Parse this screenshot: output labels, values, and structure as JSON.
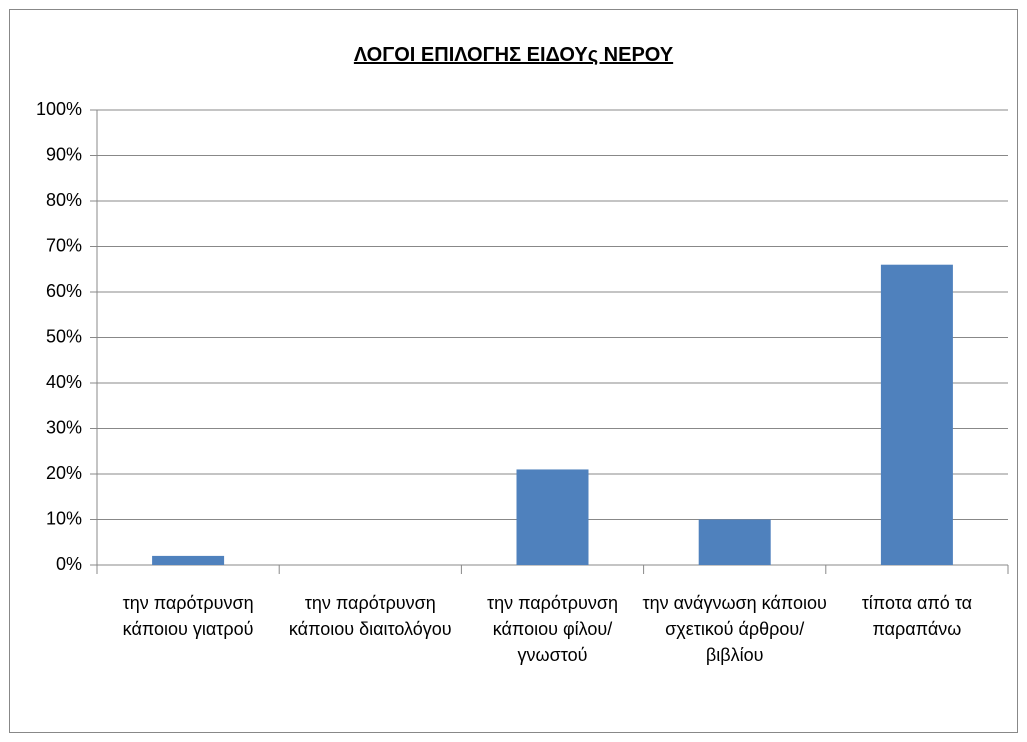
{
  "chart_data": {
    "type": "bar",
    "title": "ΛΟΓΟΙ  ΕΠΙΛΟΓΗΣ ΕΙΔΟΥς ΝΕΡΟΥ",
    "categories": [
      "την παρότρυνση κάποιου γιατρού",
      "την παρότρυνση κάποιου διαιτολόγου",
      "την παρότρυνση κάποιου φίλου/γνωστού",
      "την ανάγνωση κάποιου σχετικού άρθρου/βιβλίου",
      "τίποτα από τα παραπάνω"
    ],
    "values": [
      2,
      0,
      21,
      10,
      66
    ],
    "color": "#4f81bd",
    "ylim": [
      0,
      100
    ],
    "yticks": [
      {
        "value": 0,
        "label": "0%"
      },
      {
        "value": 10,
        "label": "10%"
      },
      {
        "value": 20,
        "label": "20%"
      },
      {
        "value": 30,
        "label": "30%"
      },
      {
        "value": 40,
        "label": "40%"
      },
      {
        "value": 50,
        "label": "50%"
      },
      {
        "value": 60,
        "label": "60%"
      },
      {
        "value": 70,
        "label": "70%"
      },
      {
        "value": 80,
        "label": "80%"
      },
      {
        "value": 90,
        "label": "90%"
      },
      {
        "value": 100,
        "label": "100%"
      }
    ],
    "grid": true
  }
}
